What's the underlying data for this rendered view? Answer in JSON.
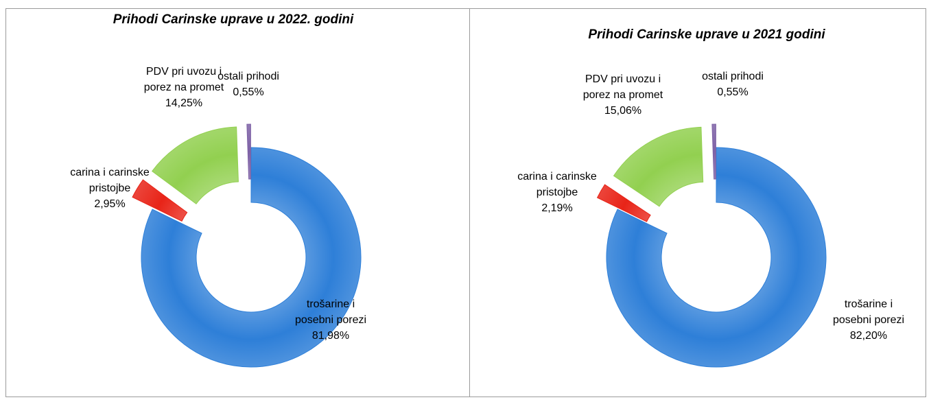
{
  "chart_data": [
    {
      "type": "donut",
      "title": "Prihodi Carinske uprave u 2022. godini",
      "categories": [
        "trošarine i posebni porezi",
        "carina i carinske pristojbe",
        "PDV pri uvozu i porez na promet",
        "ostali prihodi"
      ],
      "values": [
        81.98,
        2.95,
        14.25,
        0.55
      ],
      "value_labels": [
        "81,98%",
        "2,95%",
        "14,25%",
        "0,55%"
      ],
      "colors": [
        "#2e7fd8",
        "#e82418",
        "#92d050",
        "#7e62a6"
      ]
    },
    {
      "type": "donut",
      "title": "Prihodi Carinske uprave u 2021 godini",
      "categories": [
        "trošarine i posebni porezi",
        "carina i carinske pristojbe",
        "PDV pri uvozu i porez na promet",
        "ostali prihodi"
      ],
      "values": [
        82.2,
        2.19,
        15.06,
        0.55
      ],
      "value_labels": [
        "82,20%",
        "2,19%",
        "15,06%",
        "0,55%"
      ],
      "colors": [
        "#2e7fd8",
        "#e82418",
        "#92d050",
        "#7e62a6"
      ]
    }
  ]
}
